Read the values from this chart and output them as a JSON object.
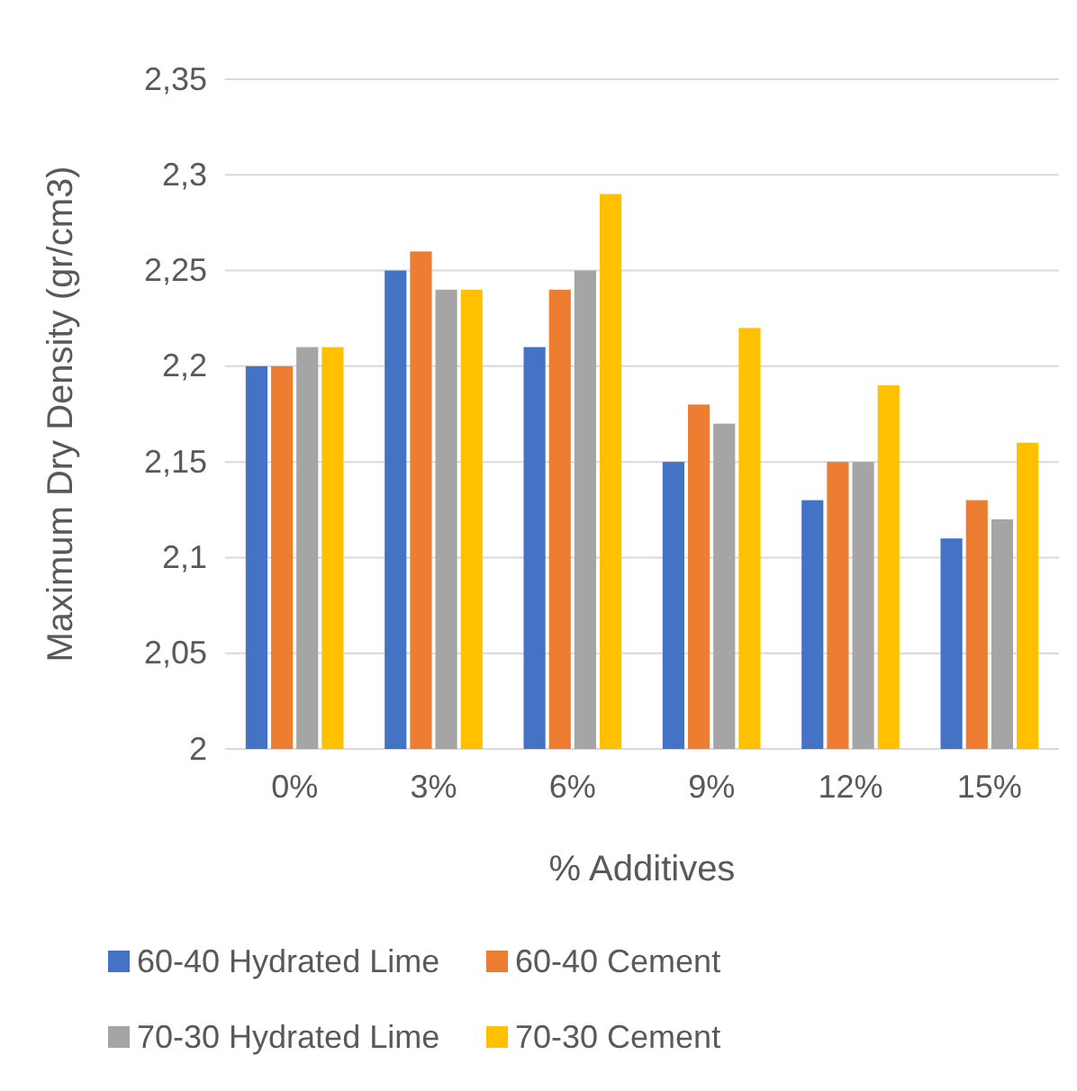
{
  "chart_data": {
    "type": "bar",
    "xlabel": "% Additives",
    "ylabel": "Maximum Dry Density (gr/cm3)",
    "categories": [
      "0%",
      "3%",
      "6%",
      "9%",
      "12%",
      "15%"
    ],
    "series": [
      {
        "name": "60-40 Hydrated Lime",
        "color": "#4472c4",
        "values": [
          2.2,
          2.25,
          2.21,
          2.15,
          2.13,
          2.11
        ]
      },
      {
        "name": "60-40 Cement",
        "color": "#ed7d31",
        "values": [
          2.2,
          2.26,
          2.24,
          2.18,
          2.15,
          2.13
        ]
      },
      {
        "name": "70-30 Hydrated Lime",
        "color": "#a5a5a5",
        "values": [
          2.21,
          2.24,
          2.25,
          2.17,
          2.15,
          2.12
        ]
      },
      {
        "name": "70-30 Cement",
        "color": "#ffc000",
        "values": [
          2.21,
          2.24,
          2.29,
          2.22,
          2.19,
          2.16
        ]
      }
    ],
    "ylim": [
      2,
      2.35
    ],
    "yticks": [
      {
        "value": 2,
        "label": "2"
      },
      {
        "value": 2.05,
        "label": "2,05"
      },
      {
        "value": 2.1,
        "label": "2,1"
      },
      {
        "value": 2.15,
        "label": "2,15"
      },
      {
        "value": 2.2,
        "label": "2,2"
      },
      {
        "value": 2.25,
        "label": "2,25"
      },
      {
        "value": 2.3,
        "label": "2,3"
      },
      {
        "value": 2.35,
        "label": "2,35"
      }
    ],
    "grid": "y",
    "legend": "bottom"
  }
}
